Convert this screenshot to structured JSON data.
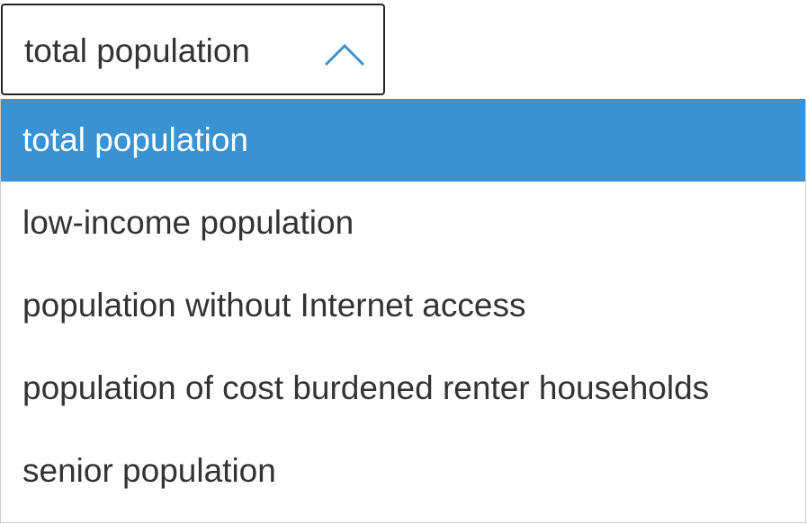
{
  "select": {
    "value": "total population",
    "options": [
      "total population",
      "low-income population",
      "population without Internet access",
      "population of cost burdened renter households",
      "senior population"
    ]
  }
}
